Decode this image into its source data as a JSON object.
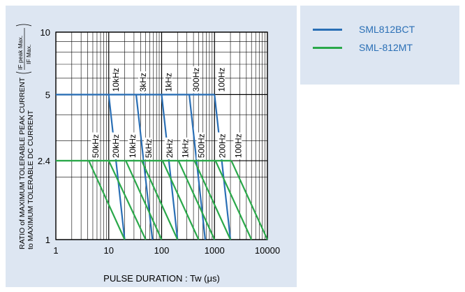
{
  "chart_data": {
    "type": "line",
    "xlabel": "PULSE DURATION : Tw (μs)",
    "ylabel_line1": "RATIO of MAXIMUM TOLERABLE PEAK CURRENT",
    "ylabel_line2": "to MAXIMUM TOLERABLE DC CURRENT",
    "ylabel_frac_num": "IF peak Max.",
    "ylabel_frac_den": "IF Max.",
    "x_scale": "log",
    "y_scale": "log",
    "xlim": [
      1,
      10000
    ],
    "ylim": [
      1,
      10
    ],
    "x_ticks": [
      1,
      10,
      100,
      1000,
      10000
    ],
    "x_tick_labels": [
      "1",
      "10",
      "100",
      "1000",
      "10000"
    ],
    "y_ticks": [
      1,
      2.4,
      5,
      10
    ],
    "y_tick_labels": [
      "1",
      "2.4",
      "5",
      "10"
    ],
    "grid": true,
    "series": [
      {
        "name": "SML812BCT",
        "color": "#2a6fb5",
        "plateau": 5,
        "lines": [
          {
            "label": "10kHz",
            "x": [
              10,
              20
            ]
          },
          {
            "label": "3kHz",
            "x": [
              33,
              67
            ]
          },
          {
            "label": "1kHz",
            "x": [
              100,
              200
            ]
          },
          {
            "label": "300Hz",
            "x": [
              333,
              667
            ]
          },
          {
            "label": "100Hz",
            "x": [
              1000,
              2000
            ]
          }
        ]
      },
      {
        "name": "SML-812MT",
        "color": "#2aa84a",
        "plateau": 2.4,
        "lines": [
          {
            "label": "50kHz",
            "x": [
              4.2,
              20
            ]
          },
          {
            "label": "20kHz",
            "x": [
              10,
              50
            ]
          },
          {
            "label": "10kHz",
            "x": [
              21,
              100
            ]
          },
          {
            "label": "5kHz",
            "x": [
              42,
              200
            ]
          },
          {
            "label": "2kHz",
            "x": [
              104,
              500
            ]
          },
          {
            "label": "1kHz",
            "x": [
              208,
              1000
            ]
          },
          {
            "label": "500Hz",
            "x": [
              417,
              2000
            ]
          },
          {
            "label": "200Hz",
            "x": [
              1042,
              5000
            ]
          },
          {
            "label": "100Hz",
            "x": [
              2083,
              10000
            ]
          }
        ]
      }
    ]
  },
  "legend": [
    {
      "label": "SML812BCT",
      "color": "#2a6fb5"
    },
    {
      "label": "SML-812MT",
      "color": "#2aa84a"
    }
  ]
}
